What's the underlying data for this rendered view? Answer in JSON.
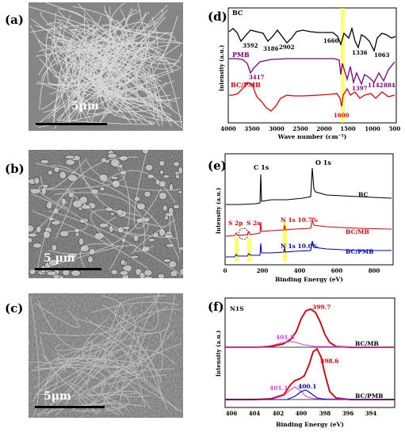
{
  "panels": {
    "a": {
      "label": "(a)",
      "scale": "5μm"
    },
    "b": {
      "label": "(b)",
      "scale": "5 μm"
    },
    "c": {
      "label": "(c)",
      "scale": "5μm"
    },
    "d": {
      "label": "(d)"
    },
    "e": {
      "label": "(e)"
    },
    "f": {
      "label": "(f)"
    }
  },
  "chart_data": [
    {
      "id": "d",
      "type": "line",
      "xlabel": "Wave number (cm⁻¹)",
      "ylabel": "Intensity (a.u.)",
      "xlim": [
        4000,
        500
      ],
      "xticks": [
        4000,
        3500,
        3000,
        2500,
        2000,
        1500,
        1000,
        500
      ],
      "highlight_x": 1600,
      "series": [
        {
          "name": "BC",
          "color": "#000000",
          "peaks": [
            3592,
            3186,
            2902,
            1660,
            1336,
            1063
          ]
        },
        {
          "name": "PMB",
          "color": "#800080",
          "peaks": [
            3417,
            1397,
            1142,
            884
          ]
        },
        {
          "name": "BC/PMB",
          "color": "#e8000b",
          "peaks": [
            1600
          ]
        }
      ],
      "annotations": [
        "3592",
        "3186",
        "2902",
        "1660",
        "1336",
        "1063",
        "3417",
        "1397",
        "1142",
        "884",
        "1600"
      ]
    },
    {
      "id": "e",
      "type": "line",
      "xlabel": "Binding Energy (eV)",
      "ylabel": "Intensity (a.u.)",
      "xlim": [
        0,
        900
      ],
      "xticks": [
        0,
        200,
        400,
        600,
        800
      ],
      "series": [
        {
          "name": "BC",
          "color": "#000000"
        },
        {
          "name": "BC/MB",
          "color": "#e8000b"
        },
        {
          "name": "BC/PMB",
          "color": "#0000cc"
        }
      ],
      "annotations": [
        "C 1s",
        "O 1s",
        "S 2p",
        "S 2s",
        "N 1s 10.7%",
        "N 1s 10.0%"
      ]
    },
    {
      "id": "f",
      "type": "line",
      "title": "N1S",
      "xlabel": "Binding Energy (eV)",
      "ylabel": "Intensity (a.u.)",
      "xlim": [
        407,
        393
      ],
      "xticks": [
        406,
        404,
        402,
        400,
        398,
        396,
        394
      ],
      "series": [
        {
          "name": "BC/MB",
          "peaks": [
            399.7,
            401.8
          ]
        },
        {
          "name": "BC/PMB",
          "peaks": [
            398.6,
            400.1,
            401.1
          ]
        }
      ],
      "annotations": [
        "399.7",
        "401.8",
        "398.6",
        "400.1",
        "401.1"
      ]
    }
  ],
  "text": {
    "d": {
      "xlabel": "Wave number (cm⁻¹)",
      "ylabel": "Intensity (a.u.)",
      "bc": "BC",
      "pmb": "PMB",
      "bcpmb": "BC/PMB",
      "p3592": "3592",
      "p3186": "3186",
      "p2902": "2902",
      "p1660": "1660",
      "p1336": "1336",
      "p1063": "1063",
      "p3417": "3417",
      "p1397": "1397",
      "p1142": "1142",
      "p884": "884",
      "p1600": "1600",
      "t0": "4000",
      "t1": "3500",
      "t2": "3000",
      "t3": "2500",
      "t4": "2000",
      "t5": "1500",
      "t6": "1000",
      "t7": "500"
    },
    "e": {
      "xlabel": "Binding Energy (eV)",
      "ylabel": "Intensity (a.u.)",
      "c1s": "C 1s",
      "o1s": "O 1s",
      "s2p": "S 2p",
      "s2s": "S 2s",
      "n1s_mb": "N 1s 10.7%",
      "n1s_pmb": "N 1s 10.0%",
      "bc": "BC",
      "bcmb": "BC/MB",
      "bcpmb": "BC/PMB",
      "t0": "0",
      "t1": "200",
      "t2": "400",
      "t3": "600",
      "t4": "800"
    },
    "f": {
      "xlabel": "Binding Energy (eV)",
      "ylabel": "Intensity (a.u.)",
      "n1s": "N1S",
      "p3997": "399.7",
      "p4018": "401.8",
      "p3986": "398.6",
      "p4001": "400.1",
      "p4011": "401.1",
      "bcmb": "BC/MB",
      "bcpmb": "BC/PMB",
      "t0": "406",
      "t1": "404",
      "t2": "402",
      "t3": "400",
      "t4": "398",
      "t5": "396",
      "t6": "394"
    }
  }
}
